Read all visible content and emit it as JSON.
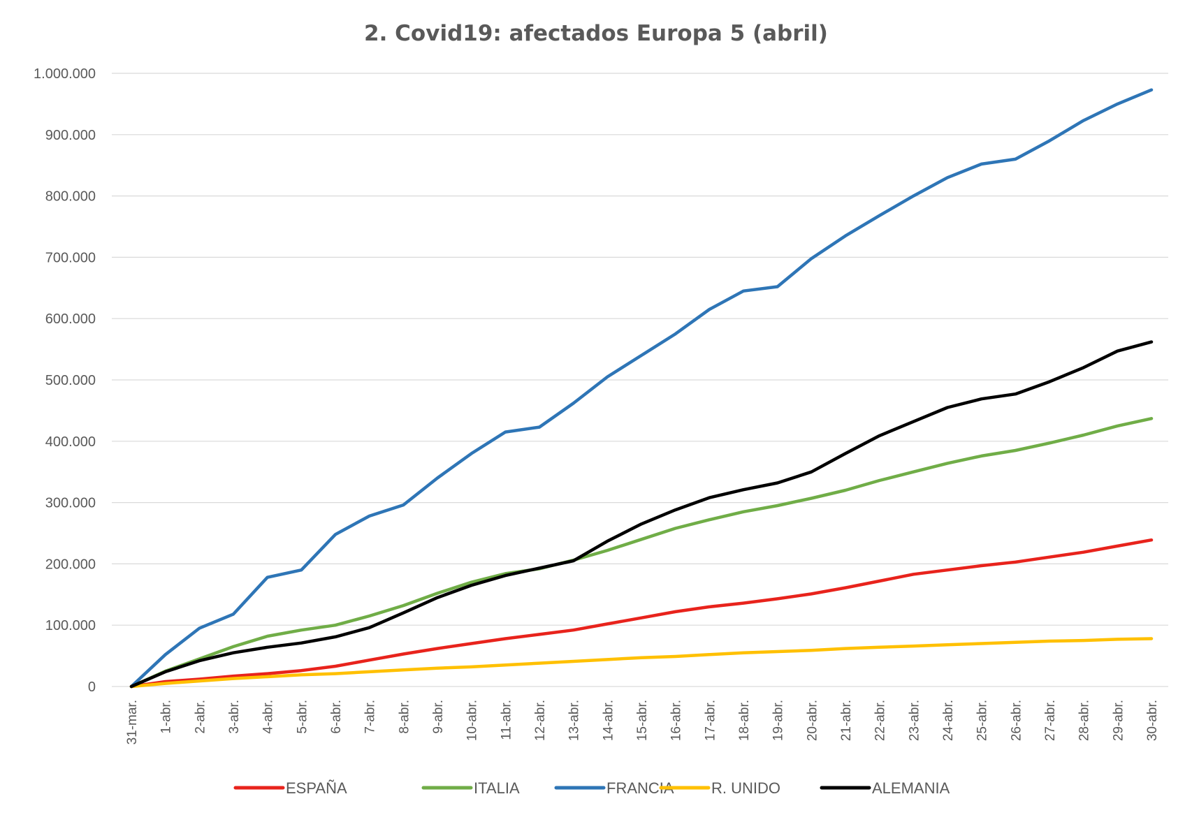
{
  "chart_data": {
    "type": "line",
    "title": "2.  Covid19: afectados Europa 5 (abril)",
    "xlabel": "",
    "ylabel": "",
    "ylim": [
      0,
      1000000
    ],
    "y_ticks": [
      0,
      100000,
      200000,
      300000,
      400000,
      500000,
      600000,
      700000,
      800000,
      900000,
      1000000
    ],
    "y_tick_labels": [
      "0",
      "100.000",
      "200.000",
      "300.000",
      "400.000",
      "500.000",
      "600.000",
      "700.000",
      "800.000",
      "900.000",
      "1.000.000"
    ],
    "grid": true,
    "legend_position": "bottom",
    "categories": [
      "31-mar.",
      "1-abr.",
      "2-abr.",
      "3-abr.",
      "4-abr.",
      "5-abr.",
      "6-abr.",
      "7-abr.",
      "8-abr.",
      "9-abr.",
      "10-abr.",
      "11-abr.",
      "12-abr.",
      "13-abr.",
      "14-abr.",
      "15-abr.",
      "16-abr.",
      "17-abr.",
      "18-abr.",
      "19-abr.",
      "20-abr.",
      "21-abr.",
      "22-abr.",
      "23-abr.",
      "24-abr.",
      "25-abr.",
      "26-abr.",
      "27-abr.",
      "28-abr.",
      "29-abr.",
      "30-abr."
    ],
    "series": [
      {
        "name": "ESPAÑA",
        "color": "#e8231c",
        "values": [
          0,
          8000,
          12000,
          17000,
          21000,
          26000,
          33000,
          43000,
          53000,
          62000,
          70000,
          78000,
          85000,
          92000,
          102000,
          112000,
          122000,
          130000,
          136000,
          143000,
          151000,
          161000,
          172000,
          183000,
          190000,
          197000,
          203000,
          211000,
          219000,
          229000,
          239000
        ]
      },
      {
        "name": "ITALIA",
        "color": "#70ad47",
        "values": [
          0,
          25000,
          45000,
          65000,
          82000,
          92000,
          100000,
          115000,
          132000,
          152000,
          170000,
          184000,
          192000,
          206000,
          222000,
          240000,
          258000,
          272000,
          285000,
          295000,
          307000,
          320000,
          336000,
          350000,
          364000,
          376000,
          385000,
          397000,
          410000,
          425000,
          437000
        ]
      },
      {
        "name": "FRANCIA",
        "color": "#2e75b6",
        "values": [
          0,
          52000,
          95000,
          118000,
          178000,
          190000,
          248000,
          278000,
          296000,
          340000,
          380000,
          415000,
          423000,
          462000,
          505000,
          540000,
          575000,
          615000,
          645000,
          652000,
          698000,
          735000,
          768000,
          800000,
          830000,
          852000,
          860000,
          890000,
          923000,
          950000,
          973000
        ]
      },
      {
        "name": "R. UNIDO",
        "color": "#ffc000",
        "values": [
          0,
          5000,
          9000,
          13000,
          16000,
          19000,
          21000,
          24000,
          27000,
          30000,
          32000,
          35000,
          38000,
          41000,
          44000,
          47000,
          49000,
          52000,
          55000,
          57000,
          59000,
          62000,
          64000,
          66000,
          68000,
          70000,
          72000,
          74000,
          75000,
          77000,
          78000
        ]
      },
      {
        "name": "ALEMANIA",
        "color": "#000000",
        "values": [
          0,
          24000,
          42000,
          55000,
          64000,
          71000,
          81000,
          96000,
          120000,
          145000,
          165000,
          181000,
          193000,
          205000,
          237000,
          265000,
          288000,
          308000,
          321000,
          332000,
          350000,
          380000,
          409000,
          432000,
          455000,
          469000,
          477000,
          497000,
          520000,
          547000,
          562000
        ]
      }
    ]
  }
}
